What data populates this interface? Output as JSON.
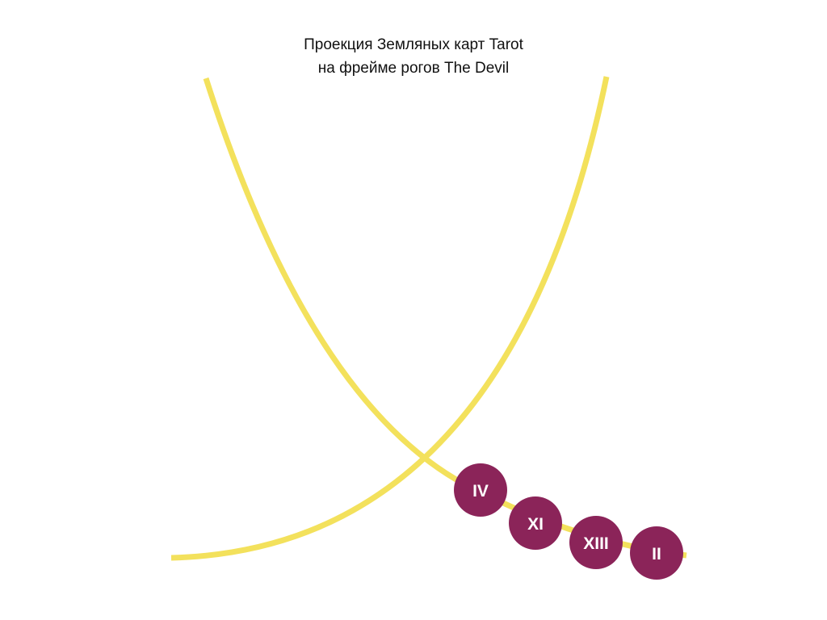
{
  "title": {
    "line1": "Проекция Земляных карт Tarot",
    "line2": "на фрейме рогов The Devil"
  },
  "colors": {
    "background": "#ffffff",
    "horn": "#f3e15c",
    "node_fill": "#8b2459",
    "node_text": "#ffffff",
    "title_text": "#111111"
  },
  "nodes": [
    {
      "label": "IV"
    },
    {
      "label": "XI"
    },
    {
      "label": "XIII"
    },
    {
      "label": "II"
    }
  ]
}
